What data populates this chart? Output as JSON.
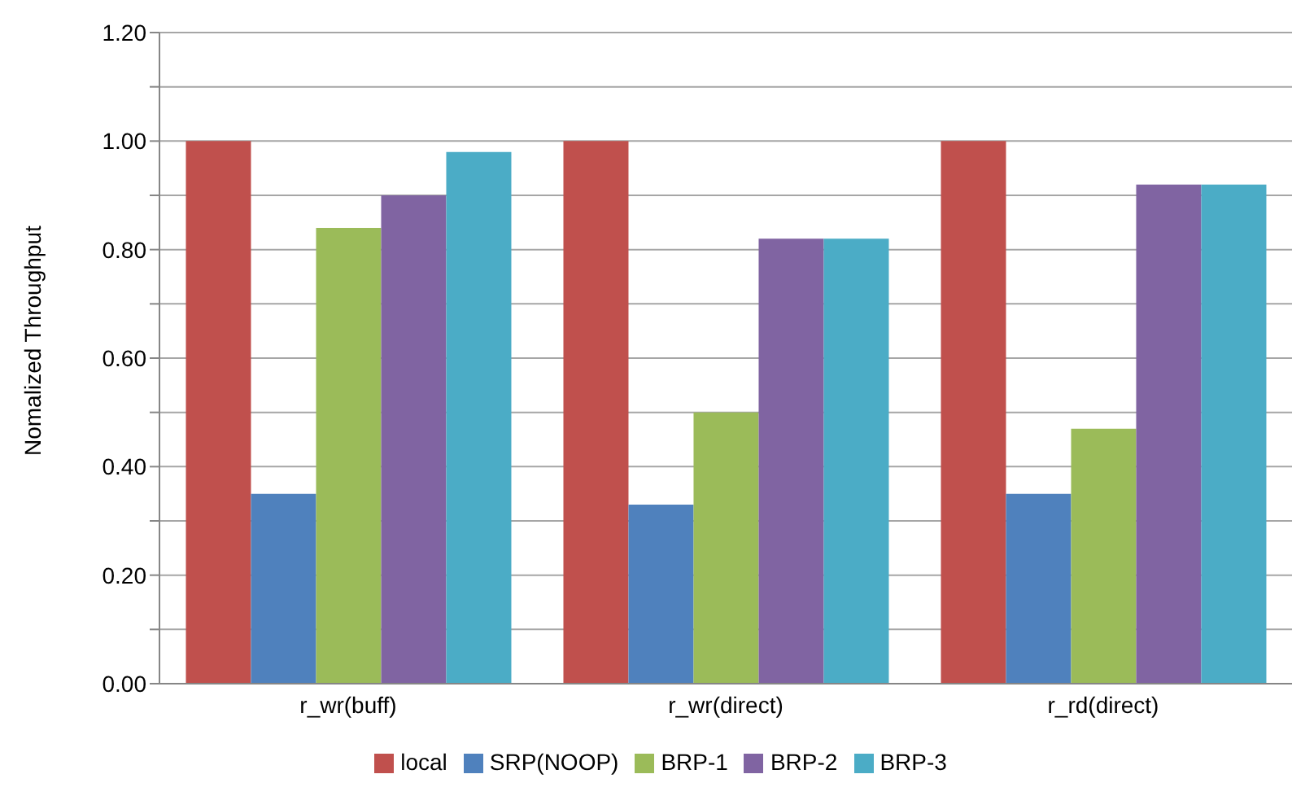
{
  "chart_data": {
    "type": "bar",
    "ylabel": "Nomalized Throughput",
    "categories": [
      "r_wr(buff)",
      "r_wr(direct)",
      "r_rd(direct)"
    ],
    "series": [
      {
        "name": "local",
        "color": "#c0504d",
        "values": [
          1.0,
          1.0,
          1.0
        ]
      },
      {
        "name": "SRP(NOOP)",
        "color": "#4f81bd",
        "values": [
          0.35,
          0.33,
          0.35
        ]
      },
      {
        "name": "BRP-1",
        "color": "#9bbb59",
        "values": [
          0.84,
          0.5,
          0.47
        ]
      },
      {
        "name": "BRP-2",
        "color": "#8064a2",
        "values": [
          0.9,
          0.82,
          0.92
        ]
      },
      {
        "name": "BRP-3",
        "color": "#4bacc6",
        "values": [
          0.98,
          0.82,
          0.92
        ]
      }
    ],
    "ylim": [
      0,
      1.2
    ],
    "yticks": [
      {
        "value": 0,
        "label": "0.00"
      },
      {
        "value": 0.1,
        "label": null
      },
      {
        "value": 0.2,
        "label": "0.20"
      },
      {
        "value": 0.3,
        "label": null
      },
      {
        "value": 0.4,
        "label": "0.40"
      },
      {
        "value": 0.5,
        "label": null
      },
      {
        "value": 0.6,
        "label": "0.60"
      },
      {
        "value": 0.7,
        "label": null
      },
      {
        "value": 0.8,
        "label": "0.80"
      },
      {
        "value": 0.9,
        "label": null
      },
      {
        "value": 1.0,
        "label": "1.00"
      },
      {
        "value": 1.1,
        "label": null
      },
      {
        "value": 1.2,
        "label": "1.20"
      }
    ],
    "grid": "y",
    "legend": "bottom"
  }
}
